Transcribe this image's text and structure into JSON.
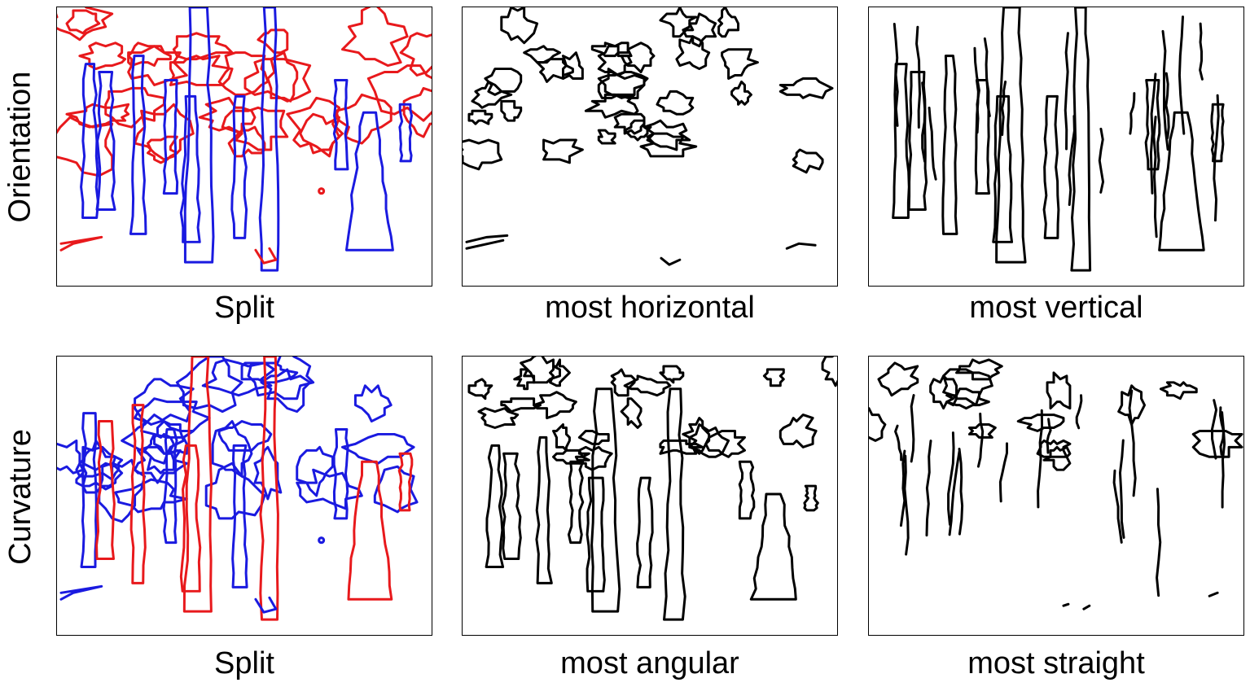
{
  "rows": [
    {
      "label": "Orientation",
      "panels": [
        {
          "caption": "Split"
        },
        {
          "caption": "most horizontal"
        },
        {
          "caption": "most vertical"
        }
      ]
    },
    {
      "label": "Curvature",
      "panels": [
        {
          "caption": "Split"
        },
        {
          "caption": "most angular"
        },
        {
          "caption": "most straight"
        }
      ]
    }
  ],
  "colors": {
    "group_a": "#e8191c",
    "group_b": "#1a1ae0",
    "single": "#000000"
  }
}
